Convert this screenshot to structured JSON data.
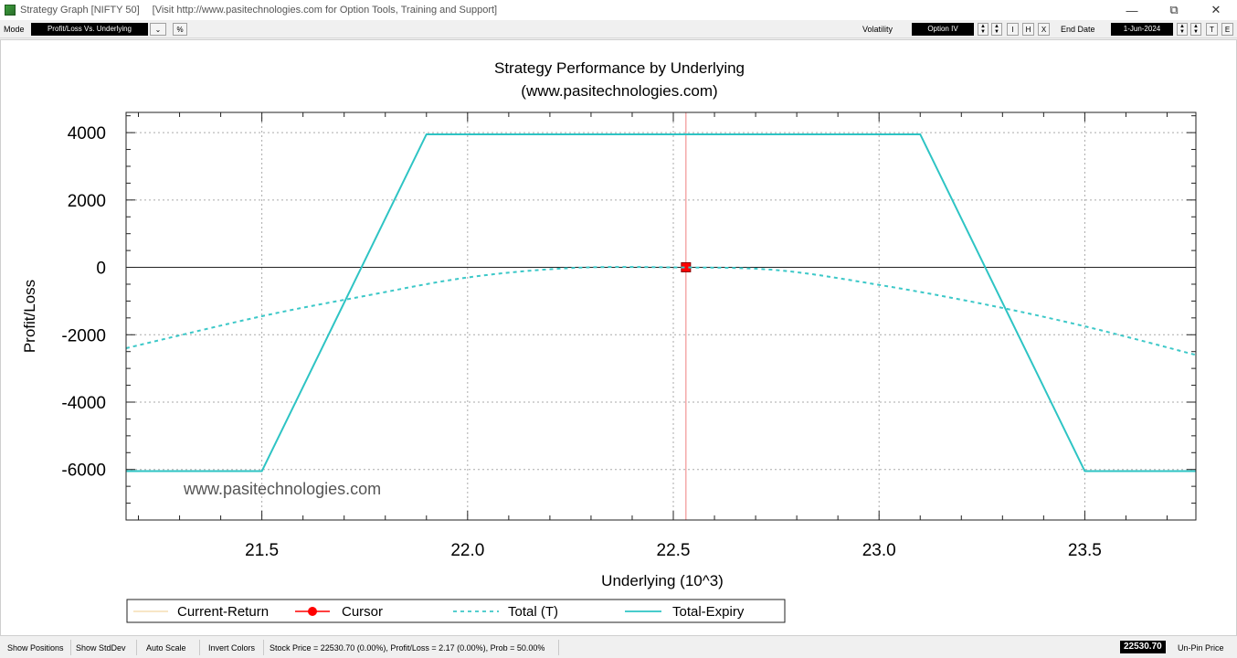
{
  "window": {
    "title": "Strategy Graph [NIFTY 50]",
    "subtitle": "[Visit  http://www.pasitechnologies.com  for Option Tools, Training and Support]",
    "controls": [
      "—",
      "⧉",
      "✕"
    ]
  },
  "toolbar": {
    "mode_label": "Mode",
    "mode_value": "Profit/Loss Vs. Underlying",
    "percent_label": "%",
    "volatility_label": "Volatility",
    "volatility_value": "Option IV",
    "btn_i": "I",
    "btn_h": "H",
    "btn_x": "X",
    "end_date_label": "End Date",
    "end_date_value": "1-Jun-2024",
    "btn_t": "T",
    "btn_e": "E"
  },
  "chart_data": {
    "type": "line",
    "title": "Strategy Performance by Underlying",
    "subtitle": "(www.pasitechnologies.com)",
    "xlabel": "Underlying (10^3)",
    "ylabel": "Profit/Loss",
    "xlim": [
      21.17,
      23.77
    ],
    "ylim": [
      -7500,
      4600
    ],
    "xticks": [
      21.5,
      22.0,
      22.5,
      23.0,
      23.5
    ],
    "xtick_labels": [
      "21.5",
      "22.0",
      "22.5",
      "23.0",
      "23.5"
    ],
    "yticks": [
      4000,
      2000,
      0,
      -2000,
      -4000,
      -6000
    ],
    "ytick_labels": [
      "4000",
      "2000",
      "0",
      "-2000",
      "-4000",
      "-6000"
    ],
    "grid": true,
    "watermark": "www.pasitechnologies.com",
    "cursor": {
      "x": 22.5307,
      "y": 2.17
    },
    "series": [
      {
        "name": "Current-Return",
        "style": "solid",
        "color": "#f5deb3",
        "x": [],
        "y": []
      },
      {
        "name": "Cursor",
        "style": "marker",
        "color": "#ff0000",
        "x": [
          22.5307
        ],
        "y": [
          2.17
        ]
      },
      {
        "name": "Total (T)",
        "style": "dashed",
        "color": "#3cc8c8",
        "x": [
          21.17,
          21.5,
          21.75,
          22.0,
          22.25,
          22.5,
          22.75,
          23.0,
          23.25,
          23.5,
          23.77
        ],
        "y": [
          -2400,
          -1450,
          -850,
          -300,
          -20,
          0,
          -80,
          -520,
          -1080,
          -1750,
          -2600
        ]
      },
      {
        "name": "Total-Expiry",
        "style": "solid",
        "color": "#2ec4c4",
        "x": [
          21.17,
          21.5,
          21.9,
          23.1,
          23.5,
          23.77
        ],
        "y": [
          -6050,
          -6050,
          3950,
          3950,
          -6050,
          -6050
        ]
      }
    ],
    "legend": {
      "position": "bottom",
      "entries": [
        "Current-Return",
        "Cursor",
        "Total (T)",
        "Total-Expiry"
      ]
    }
  },
  "statusbar": {
    "show_positions": "Show Positions",
    "show_stddev": "Show StdDev",
    "auto_scale": "Auto Scale",
    "invert_colors": "Invert Colors",
    "status_text": "Stock Price = 22530.70 (0.00%), Profit/Loss = 2.17 (0.00%), Prob = 50.00%",
    "price_value": "22530.70",
    "unpin_price": "Un-Pin Price"
  }
}
